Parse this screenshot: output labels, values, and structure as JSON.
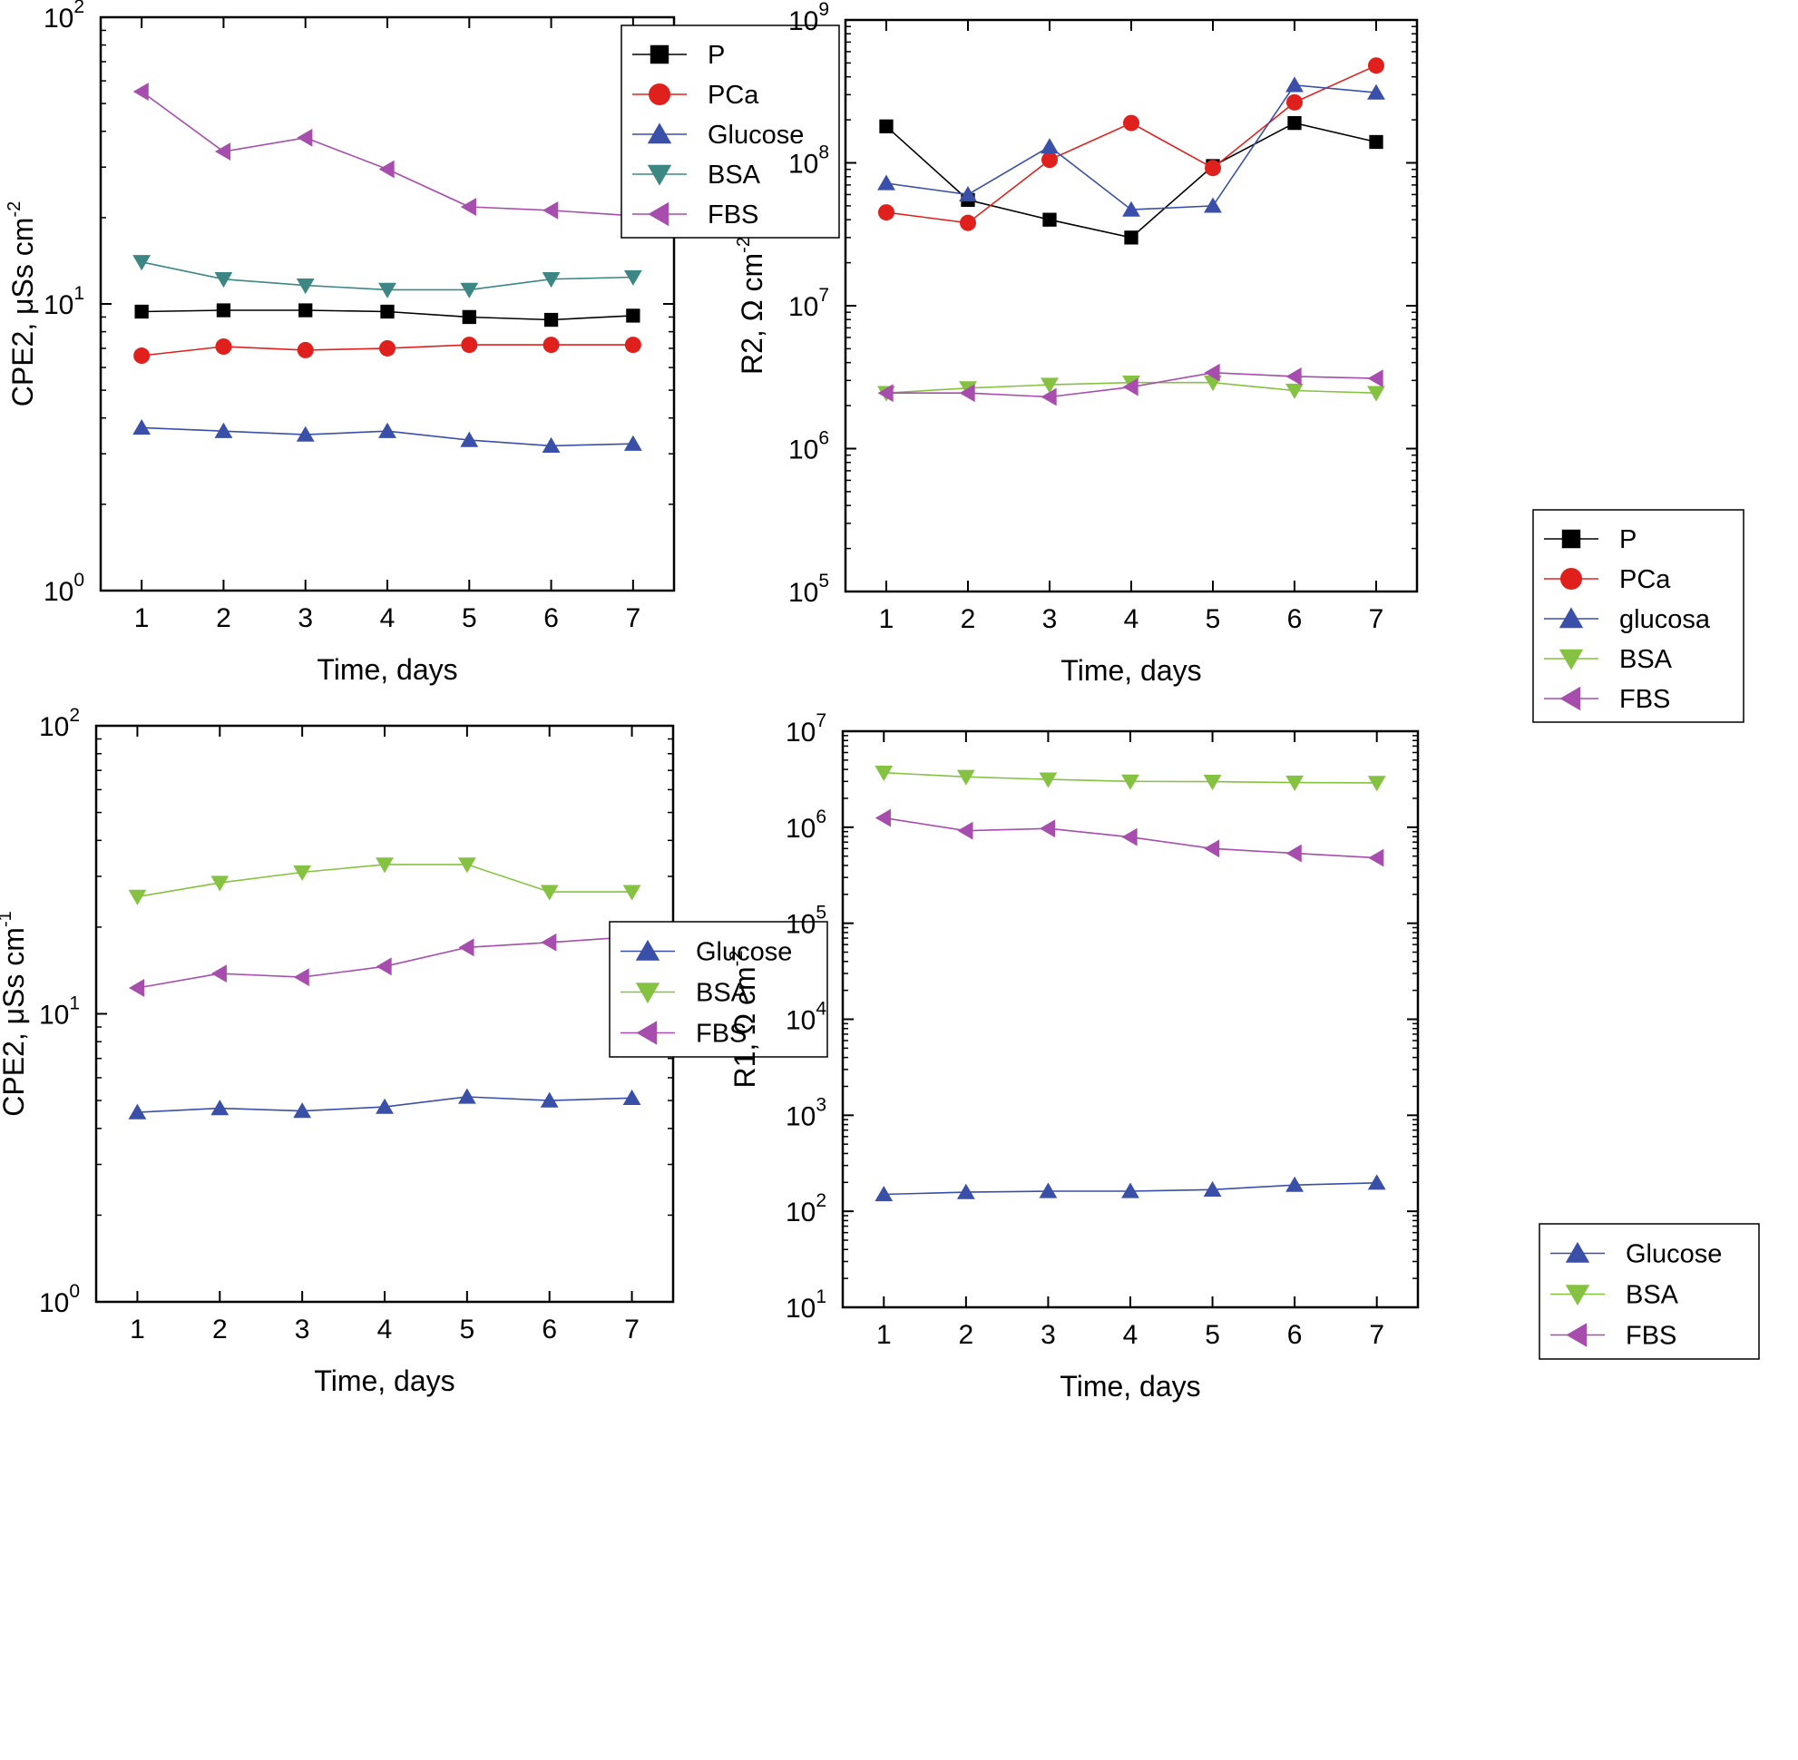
{
  "chart_data": [
    {
      "type": "line",
      "title": "",
      "xlabel": "Time, days",
      "ylabel": "CPE2, μSs cm",
      "ylabel_sup": "-2",
      "yscale": "log",
      "ylim": [
        1,
        100
      ],
      "xlim": [
        0.5,
        7.5
      ],
      "xticks": [
        "1",
        "2",
        "3",
        "4",
        "5",
        "6",
        "7"
      ],
      "yticks": [
        {
          "base": "10",
          "exp": "0"
        },
        {
          "base": "10",
          "exp": "1"
        },
        {
          "base": "10",
          "exp": "2"
        }
      ],
      "legend_position": "top-right",
      "x": [
        1,
        2,
        3,
        4,
        5,
        6,
        7
      ],
      "series": [
        {
          "name": "P",
          "marker": "square",
          "color": "#000000",
          "values": [
            9.4,
            9.5,
            9.5,
            9.4,
            9.0,
            8.8,
            9.1
          ]
        },
        {
          "name": "PCa",
          "marker": "circle",
          "color": "#e0201c",
          "values": [
            6.6,
            7.1,
            6.9,
            7.0,
            7.2,
            7.2,
            7.2
          ]
        },
        {
          "name": "Glucose",
          "marker": "triangle-up",
          "color": "#3a4fa8",
          "values": [
            3.7,
            3.6,
            3.5,
            3.6,
            3.35,
            3.2,
            3.25
          ]
        },
        {
          "name": "BSA",
          "marker": "triangle-down",
          "color": "#3c8783",
          "values": [
            14.0,
            12.2,
            11.6,
            11.2,
            11.2,
            12.2,
            12.4
          ]
        },
        {
          "name": "FBS",
          "marker": "triangle-left",
          "color": "#a64dae",
          "values": [
            55,
            34,
            38,
            29.5,
            21.8,
            21.2,
            20.3
          ]
        }
      ]
    },
    {
      "type": "line",
      "title": "",
      "xlabel": "Time, days",
      "ylabel": "R2, Ω cm",
      "ylabel_sup": "-2",
      "yscale": "log",
      "ylim": [
        100000,
        1000000000
      ],
      "xlim": [
        0.5,
        7.5
      ],
      "xticks": [
        "1",
        "2",
        "3",
        "4",
        "5",
        "6",
        "7"
      ],
      "yticks": [
        {
          "base": "10",
          "exp": "5"
        },
        {
          "base": "10",
          "exp": "6"
        },
        {
          "base": "10",
          "exp": "7"
        },
        {
          "base": "10",
          "exp": "8"
        },
        {
          "base": "10",
          "exp": "9"
        }
      ],
      "legend_position": "lower-right",
      "x": [
        1,
        2,
        3,
        4,
        5,
        6,
        7
      ],
      "series": [
        {
          "name": "P",
          "marker": "square",
          "color": "#000000",
          "values": [
            180000000,
            55000000,
            40000000,
            30000000,
            95000000,
            190000000,
            140000000
          ]
        },
        {
          "name": "PCa",
          "marker": "circle",
          "color": "#e0201c",
          "values": [
            45000000,
            38000000,
            105000000,
            190000000,
            92000000,
            265000000,
            480000000
          ]
        },
        {
          "name": "glucosa",
          "marker": "triangle-up",
          "color": "#3a4fa8",
          "values": [
            72000000,
            60000000,
            130000000,
            47000000,
            50000000,
            350000000,
            310000000
          ]
        },
        {
          "name": "BSA",
          "marker": "triangle-down",
          "color": "#86c241",
          "values": [
            2450000,
            2650000,
            2800000,
            2900000,
            2900000,
            2550000,
            2450000
          ]
        },
        {
          "name": "FBS",
          "marker": "triangle-left",
          "color": "#a64dae",
          "values": [
            2450000,
            2450000,
            2300000,
            2700000,
            3400000,
            3200000,
            3100000
          ]
        }
      ]
    },
    {
      "type": "line",
      "title": "",
      "xlabel": "Time, days",
      "ylabel": "CPE2, μSs cm",
      "ylabel_sup": "-1",
      "yscale": "log",
      "ylim": [
        1,
        100
      ],
      "xlim": [
        0.5,
        7.5
      ],
      "xticks": [
        "1",
        "2",
        "3",
        "4",
        "5",
        "6",
        "7"
      ],
      "yticks": [
        {
          "base": "10",
          "exp": "0"
        },
        {
          "base": "10",
          "exp": "1"
        },
        {
          "base": "10",
          "exp": "2"
        }
      ],
      "legend_position": "top-right",
      "x": [
        1,
        2,
        3,
        4,
        5,
        6,
        7
      ],
      "series": [
        {
          "name": "Glucose",
          "marker": "triangle-up",
          "color": "#3a4fa8",
          "values": [
            4.55,
            4.7,
            4.6,
            4.75,
            5.15,
            5.0,
            5.1
          ]
        },
        {
          "name": "BSA",
          "marker": "triangle-down",
          "color": "#86c241",
          "values": [
            25.5,
            28.5,
            31,
            33,
            33,
            26.5,
            26.5
          ]
        },
        {
          "name": "FBS",
          "marker": "triangle-left",
          "color": "#a64dae",
          "values": [
            12.3,
            13.8,
            13.4,
            14.6,
            17.0,
            17.7,
            18.5
          ]
        }
      ]
    },
    {
      "type": "line",
      "title": "",
      "xlabel": "Time, days",
      "ylabel": "R1, Ω cm",
      "ylabel_sup": "-2",
      "yscale": "log",
      "ylim": [
        10,
        10000000
      ],
      "xlim": [
        0.5,
        7.5
      ],
      "xticks": [
        "1",
        "2",
        "3",
        "4",
        "5",
        "6",
        "7"
      ],
      "yticks": [
        {
          "base": "10",
          "exp": "1"
        },
        {
          "base": "10",
          "exp": "2"
        },
        {
          "base": "10",
          "exp": "3"
        },
        {
          "base": "10",
          "exp": "4"
        },
        {
          "base": "10",
          "exp": "5"
        },
        {
          "base": "10",
          "exp": "6"
        },
        {
          "base": "10",
          "exp": "7"
        }
      ],
      "legend_position": "center-right",
      "x": [
        1,
        2,
        3,
        4,
        5,
        6,
        7
      ],
      "series": [
        {
          "name": "Glucose",
          "marker": "triangle-up",
          "color": "#3a4fa8",
          "values": [
            150,
            158,
            162,
            162,
            168,
            188,
            198
          ]
        },
        {
          "name": "BSA",
          "marker": "triangle-down",
          "color": "#86c241",
          "values": [
            3700000,
            3350000,
            3150000,
            3000000,
            2980000,
            2920000,
            2900000
          ]
        },
        {
          "name": "FBS",
          "marker": "triangle-left",
          "color": "#a64dae",
          "values": [
            1250000,
            920000,
            970000,
            790000,
            600000,
            535000,
            480000
          ]
        }
      ]
    }
  ]
}
